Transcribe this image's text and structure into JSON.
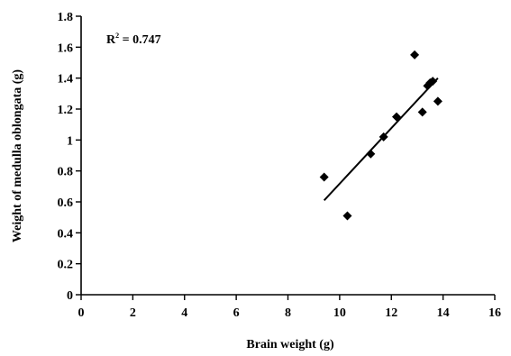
{
  "chart_data": {
    "type": "scatter",
    "title": "",
    "xlabel": "Brain weight (g)",
    "ylabel": "Weight of medulla oblongata (g)",
    "xlim": [
      0,
      16
    ],
    "ylim": [
      0,
      1.8
    ],
    "x_ticks": [
      "0",
      "2",
      "4",
      "6",
      "8",
      "10",
      "12",
      "14",
      "16"
    ],
    "y_ticks": [
      "0",
      "0.2",
      "0.4",
      "0.6",
      "0.8",
      "1",
      "1.2",
      "1.4",
      "1.6",
      "1.8"
    ],
    "grid": false,
    "annotation": {
      "base": "R",
      "sup": "2",
      "rest": " = 0.747"
    },
    "series": [
      {
        "marker": "diamond",
        "color": "#000000",
        "points": [
          {
            "x": 9.4,
            "y": 0.76
          },
          {
            "x": 10.3,
            "y": 0.51
          },
          {
            "x": 11.2,
            "y": 0.91
          },
          {
            "x": 11.7,
            "y": 1.02
          },
          {
            "x": 12.2,
            "y": 1.15
          },
          {
            "x": 12.9,
            "y": 1.55
          },
          {
            "x": 13.2,
            "y": 1.18
          },
          {
            "x": 13.4,
            "y": 1.35
          },
          {
            "x": 13.5,
            "y": 1.37
          },
          {
            "x": 13.6,
            "y": 1.38
          },
          {
            "x": 13.8,
            "y": 1.25
          }
        ]
      }
    ],
    "trendline": {
      "type": "linear",
      "from": {
        "x": 9.4,
        "y": 0.61
      },
      "to": {
        "x": 13.8,
        "y": 1.4
      }
    }
  }
}
